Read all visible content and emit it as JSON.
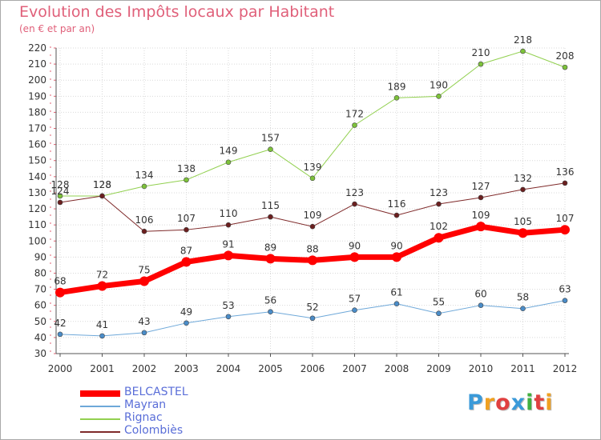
{
  "header": {
    "title": "Evolution des Impôts locaux par Habitant",
    "subtitle": "(en € et par an)"
  },
  "legend": {
    "items": [
      {
        "label": "BELCASTEL",
        "color": "#ff0000"
      },
      {
        "label": "Mayran",
        "color": "#5b9bd5"
      },
      {
        "label": "Rignac",
        "color": "#92d050"
      },
      {
        "label": "Colombiès",
        "color": "#7f2a2a"
      }
    ]
  },
  "logo": {
    "text": "Proxiti",
    "letters": [
      "P",
      "r",
      "o",
      "x",
      "i",
      "t",
      "i"
    ],
    "colors": [
      "#3a9ad9",
      "#f0a020",
      "#e04040",
      "#3a9ad9",
      "#40b040",
      "#e04040",
      "#f0a020"
    ]
  },
  "chart_data": {
    "type": "line",
    "title": "Evolution des Impôts locaux par Habitant",
    "subtitle": "(en € et par an)",
    "xlabel": "",
    "ylabel": "",
    "x": [
      "2000",
      "2001",
      "2002",
      "2003",
      "2004",
      "2005",
      "2006",
      "2007",
      "2008",
      "2009",
      "2010",
      "2011",
      "2012"
    ],
    "ylim": [
      30,
      220
    ],
    "yticks": [
      30,
      40,
      50,
      60,
      70,
      80,
      90,
      100,
      110,
      120,
      130,
      140,
      150,
      160,
      170,
      180,
      190,
      200,
      210,
      220
    ],
    "grid": true,
    "legend_position": "bottom-left",
    "series": [
      {
        "name": "Rignac",
        "color": "#92d050",
        "point_color": "#7dc23a",
        "width": 1,
        "marker_r": 3,
        "values": [
          128,
          128,
          134,
          138,
          149,
          157,
          139,
          172,
          189,
          190,
          210,
          218,
          208
        ]
      },
      {
        "name": "Colombiès",
        "color": "#7f2a2a",
        "point_color": "#6b1f1f",
        "width": 1,
        "marker_r": 3,
        "values": [
          124,
          128,
          106,
          107,
          110,
          115,
          109,
          123,
          116,
          123,
          127,
          132,
          136
        ]
      },
      {
        "name": "Mayran",
        "color": "#6ea8d9",
        "point_color": "#4a8cc8",
        "width": 1,
        "marker_r": 3,
        "values": [
          42,
          41,
          43,
          49,
          53,
          56,
          52,
          57,
          61,
          55,
          60,
          58,
          63
        ]
      },
      {
        "name": "BELCASTEL",
        "color": "#ff0000",
        "point_color": "#ff0000",
        "width": 7,
        "marker_r": 6,
        "values": [
          68,
          72,
          75,
          87,
          91,
          89,
          88,
          90,
          90,
          102,
          109,
          105,
          107
        ]
      }
    ]
  }
}
